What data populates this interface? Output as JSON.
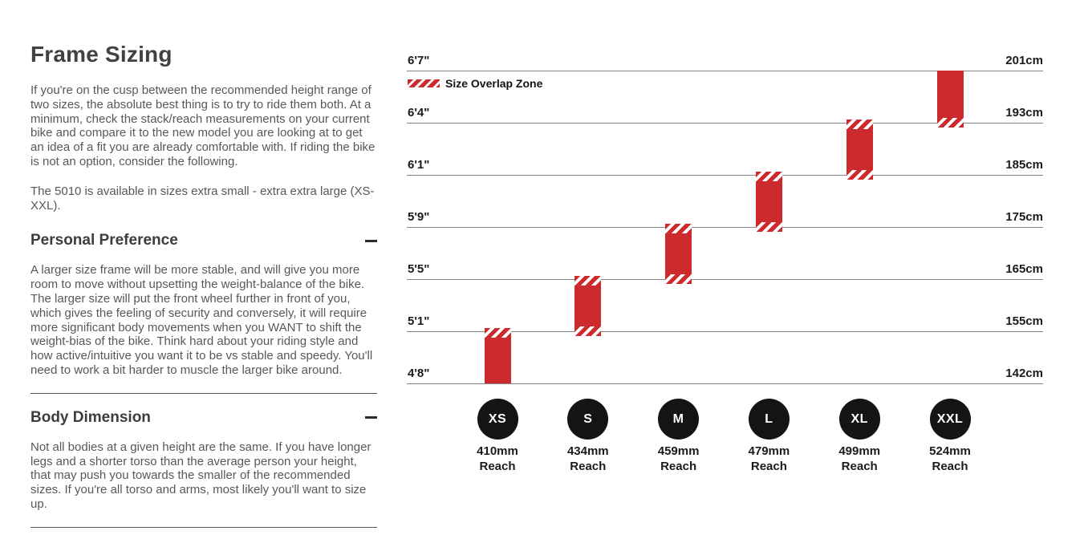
{
  "page": {
    "title": "Frame Sizing",
    "intro": "If you're on the cusp between the recommended height range of two sizes, the absolute best thing is to try to ride them both. At a minimum, check the stack/reach measurements on your current bike and compare it to the new model you are looking at to get an idea of a fit you are already comfortable with. If riding the bike is not an option, consider the following.",
    "availability": "The 5010 is available in sizes extra small - extra extra large (XS-XXL).",
    "sections": [
      {
        "title": "Personal Preference",
        "toggle_state": "expanded",
        "body": "A larger size frame will be more stable, and will give you more room to move without upsetting the weight-balance of the bike. The larger size will put the front wheel further in front of you, which gives the feeling of security and conversely, it will require more significant body movements when you WANT to shift the weight-bias of the bike. Think hard about your riding style and how active/intuitive you want it to be vs stable and speedy. You'll need to work a bit harder to muscle the larger bike around."
      },
      {
        "title": "Body Dimension",
        "toggle_state": "expanded",
        "body": "Not all bodies at a given height are the same. If you have longer legs and a shorter torso than the average person your height, that may push you towards the smaller of the recommended sizes. If you're all torso and arms, most likely you'll want to size up."
      }
    ]
  },
  "chart_data": {
    "type": "bar",
    "title": "",
    "legend_label": "Size Overlap Zone",
    "legend_position": "top-left",
    "orientation": "vertical-range-bars",
    "grid": true,
    "reach_unit_label": "Reach",
    "colors": {
      "bar": "#cd2a2e",
      "circle": "#141415",
      "gridline": "#848487"
    },
    "rows": [
      {
        "ft": "6'7\"",
        "cm": "201cm"
      },
      {
        "ft": "6'4\"",
        "cm": "193cm"
      },
      {
        "ft": "6'1\"",
        "cm": "185cm"
      },
      {
        "ft": "5'9\"",
        "cm": "175cm"
      },
      {
        "ft": "5'5\"",
        "cm": "165cm"
      },
      {
        "ft": "5'1\"",
        "cm": "155cm"
      },
      {
        "ft": "4'8\"",
        "cm": "142cm"
      }
    ],
    "sizes": [
      {
        "label": "XS",
        "reach": "410mm",
        "top_row": 5,
        "bottom_row": 6,
        "overlap_top": true,
        "overlap_bottom": false,
        "height_ft": "4'8\"-5'1\"",
        "height_cm": "142-155cm"
      },
      {
        "label": "S",
        "reach": "434mm",
        "top_row": 4,
        "bottom_row": 5,
        "overlap_top": true,
        "overlap_bottom": true,
        "height_ft": "5'1\"-5'5\"",
        "height_cm": "155-165cm"
      },
      {
        "label": "M",
        "reach": "459mm",
        "top_row": 3,
        "bottom_row": 4,
        "overlap_top": true,
        "overlap_bottom": true,
        "height_ft": "5'5\"-5'9\"",
        "height_cm": "165-175cm"
      },
      {
        "label": "L",
        "reach": "479mm",
        "top_row": 2,
        "bottom_row": 3,
        "overlap_top": true,
        "overlap_bottom": true,
        "height_ft": "5'9\"-6'1\"",
        "height_cm": "175-185cm"
      },
      {
        "label": "XL",
        "reach": "499mm",
        "top_row": 1,
        "bottom_row": 2,
        "overlap_top": true,
        "overlap_bottom": true,
        "height_ft": "6'1\"-6'4\"",
        "height_cm": "185-193cm"
      },
      {
        "label": "XXL",
        "reach": "524mm",
        "top_row": 0,
        "bottom_row": 1,
        "overlap_top": false,
        "overlap_bottom": true,
        "height_ft": "6'4\"-6'7\"",
        "height_cm": "193-201cm"
      }
    ]
  }
}
